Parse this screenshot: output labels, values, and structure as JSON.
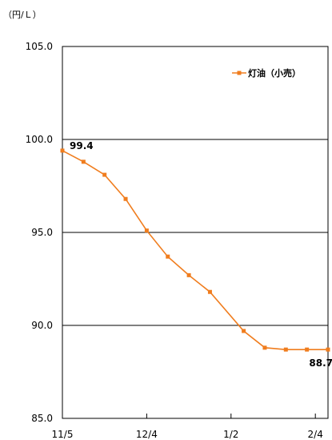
{
  "chart_data": {
    "type": "line",
    "unit_label": "（円/Ｌ）",
    "ylim": [
      85.0,
      105.0
    ],
    "yticks": [
      "85.0",
      "90.0",
      "95.0",
      "100.0",
      "105.0"
    ],
    "ytick_values": [
      85,
      90,
      95,
      100,
      105
    ],
    "xticks": [
      {
        "label": "11/5",
        "pos": 0
      },
      {
        "label": "12/4",
        "pos": 4
      },
      {
        "label": "1/2",
        "pos": 8
      },
      {
        "label": "2/4",
        "pos": 12
      }
    ],
    "grid": true,
    "legend_position": "top-right",
    "series": [
      {
        "name": "灯油（小売）",
        "color": "#f07d1e",
        "x": [
          0,
          1,
          2,
          3,
          4,
          5,
          6,
          7,
          8.6,
          9.6,
          10.6,
          11.6,
          12.6
        ],
        "values": [
          99.4,
          98.8,
          98.1,
          96.8,
          95.1,
          93.7,
          92.7,
          91.8,
          89.7,
          88.8,
          88.7,
          88.7,
          88.7
        ]
      }
    ],
    "data_labels": [
      {
        "text": "99.4",
        "index": 0
      },
      {
        "text": "88.7",
        "index": 12
      }
    ]
  }
}
